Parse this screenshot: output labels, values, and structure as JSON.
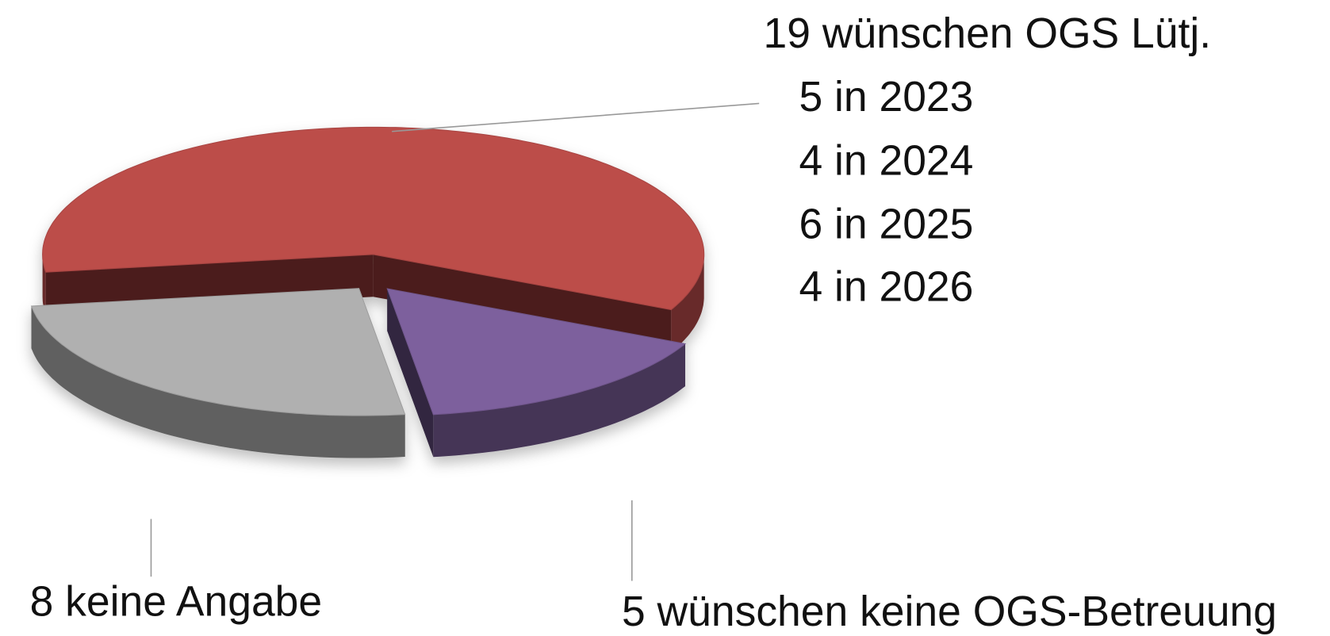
{
  "chart_data": {
    "type": "pie",
    "values": [
      19,
      5,
      8
    ],
    "value_labels": [
      "19 wünschen OGS Lütj.",
      "5 wünschen keine OGS-Betreuung",
      "8 keine Angabe"
    ],
    "colors": [
      "#bc4d4a",
      "#7d619d",
      "#b0b0b0"
    ],
    "annotations": [
      "5 in 2023",
      "4 in 2024",
      "6 in 2025",
      "4 in 2026"
    ]
  }
}
